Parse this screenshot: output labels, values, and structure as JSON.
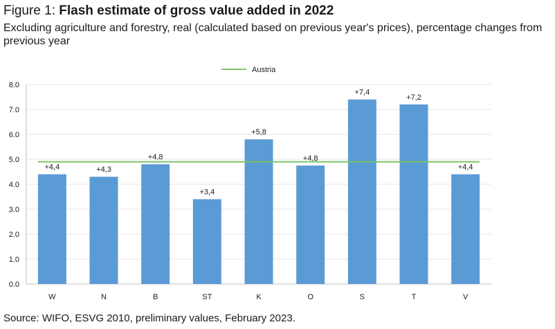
{
  "header": {
    "figure_prefix": "Figure 1:",
    "title": "Flash estimate of gross value added in 2022",
    "subtitle": "Excluding agriculture and forestry, real (calculated based on previous year's prices), percentage changes from previous year"
  },
  "footer": {
    "source": "Source: WIFO, ESVG 2010, preliminary values, February 2023."
  },
  "chart_data": {
    "type": "bar",
    "categories": [
      "W",
      "N",
      "B",
      "ST",
      "K",
      "O",
      "S",
      "T",
      "V"
    ],
    "values": [
      4.4,
      4.3,
      4.8,
      3.4,
      5.8,
      4.75,
      7.4,
      7.2,
      4.4
    ],
    "data_labels": [
      "+4,4",
      "+4,3",
      "+4,8",
      "+3,4",
      "+5,8",
      "+4,8",
      "+7,4",
      "+7,2",
      "+4,4"
    ],
    "reference_line": {
      "name": "Austria",
      "value": 4.9,
      "color": "#7ac36a"
    },
    "bar_color": "#5b9bd5",
    "ylim": [
      0,
      8
    ],
    "yticks": [
      0,
      1,
      2,
      3,
      4,
      5,
      6,
      7,
      8
    ],
    "ytick_labels": [
      "0.0",
      "1.0",
      "2.0",
      "3.0",
      "4.0",
      "5.0",
      "6.0",
      "7.0",
      "8.0"
    ],
    "grid": true,
    "legend_position": "top-center"
  }
}
